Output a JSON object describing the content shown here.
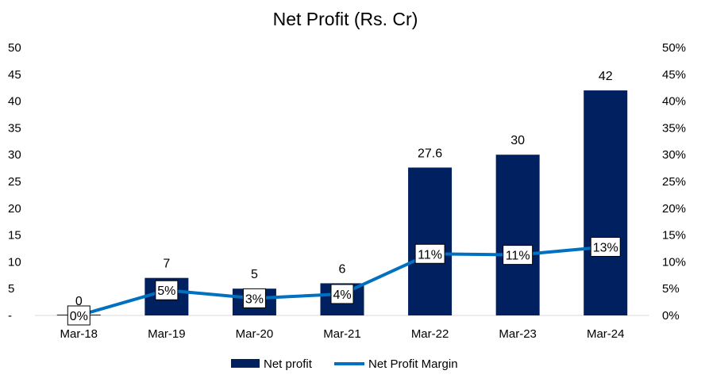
{
  "chart_data": {
    "type": "bar",
    "title": "Net Profit (Rs. Cr)",
    "categories": [
      "Mar-18",
      "Mar-19",
      "Mar-20",
      "Mar-21",
      "Mar-22",
      "Mar-23",
      "Mar-24"
    ],
    "series": [
      {
        "name": "Net profit",
        "type": "bar",
        "axis": "left",
        "color": "#002060",
        "values": [
          0,
          7,
          5,
          6,
          27.6,
          30,
          42
        ],
        "labels": [
          "0",
          "7",
          "5",
          "6",
          "27.6",
          "30",
          "42"
        ]
      },
      {
        "name": "Net Profit Margin",
        "type": "line",
        "axis": "right",
        "color": "#0070C0",
        "values": [
          0,
          0.047,
          0.032,
          0.04,
          0.115,
          0.113,
          0.128
        ],
        "labels": [
          "0%",
          "5%",
          "3%",
          "4%",
          "11%",
          "11%",
          "13%"
        ]
      }
    ],
    "y_left": {
      "ylim": [
        0,
        50
      ],
      "ticks": [
        "-",
        "5",
        "10",
        "15",
        "20",
        "25",
        "30",
        "35",
        "40",
        "45",
        "50"
      ]
    },
    "y_right": {
      "ylim": [
        0,
        0.5
      ],
      "ticks": [
        "0%",
        "5%",
        "10%",
        "15%",
        "20%",
        "25%",
        "30%",
        "35%",
        "40%",
        "45%",
        "50%"
      ]
    },
    "grid": false,
    "legend": "bottom"
  }
}
